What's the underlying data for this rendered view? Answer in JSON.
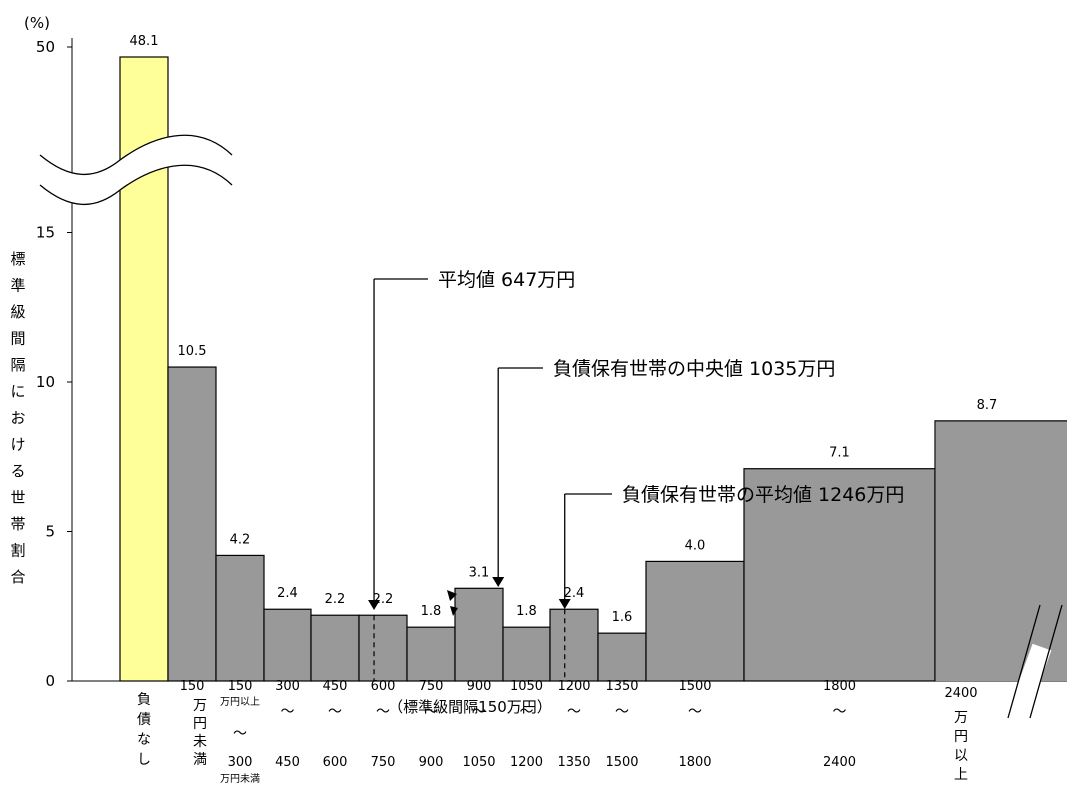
{
  "chart_data": {
    "type": "bar",
    "title": "",
    "yunit": "(%)",
    "ylabel": "標準級間隔における世帯割合",
    "xlabel": "（標準級間隔150万円）",
    "y_ticks": [
      "0",
      "5",
      "10",
      "15",
      "50"
    ],
    "bars": [
      {
        "label_lines": [
          "負",
          "債",
          "な",
          "し"
        ],
        "value": 48.1,
        "value_label": "48.1",
        "highlight": true
      },
      {
        "label_lines": [
          "150",
          "万",
          "円",
          "未",
          "満"
        ],
        "value": 10.5,
        "value_label": "10.5"
      },
      {
        "label_lines": [
          "150",
          "万円以上",
          "～",
          "300",
          "万円未満"
        ],
        "value": 4.2,
        "value_label": "4.2"
      },
      {
        "label_lines": [
          "300",
          "～",
          "450"
        ],
        "value": 2.4,
        "value_label": "2.4"
      },
      {
        "label_lines": [
          "450",
          "～",
          "600"
        ],
        "value": 2.2,
        "value_label": "2.2"
      },
      {
        "label_lines": [
          "600",
          "～",
          "750"
        ],
        "value": 2.2,
        "value_label": "2.2"
      },
      {
        "label_lines": [
          "750",
          "～",
          "900"
        ],
        "value": 1.8,
        "value_label": "1.8"
      },
      {
        "label_lines": [
          "900",
          "～",
          "1050"
        ],
        "value": 3.1,
        "value_label": "3.1"
      },
      {
        "label_lines": [
          "1050",
          "～",
          "1200"
        ],
        "value": 1.8,
        "value_label": "1.8"
      },
      {
        "label_lines": [
          "1200",
          "～",
          "1350"
        ],
        "value": 2.4,
        "value_label": "2.4"
      },
      {
        "label_lines": [
          "1350",
          "～",
          "1500"
        ],
        "value": 1.6,
        "value_label": "1.6"
      },
      {
        "label_lines": [
          "1500",
          "～",
          "1800"
        ],
        "value": 4.0,
        "value_label": "4.0"
      },
      {
        "label_lines": [
          "1800",
          "～",
          "2400"
        ],
        "value": 7.1,
        "value_label": "7.1"
      },
      {
        "label_lines": [
          "2400",
          "万",
          "円",
          "以",
          "上"
        ],
        "value": 8.7,
        "value_label": "8.7"
      }
    ],
    "annotations": [
      {
        "text": "平均値 647万円",
        "value": 647
      },
      {
        "text": "負債保有世帯の中央値 1035万円",
        "value": 1035
      },
      {
        "text": "負債保有世帯の平均値 1246万円",
        "value": 1246
      }
    ],
    "colors": {
      "highlight_bar": "#ffff99",
      "bar": "#999999",
      "stroke": "#000000"
    }
  }
}
